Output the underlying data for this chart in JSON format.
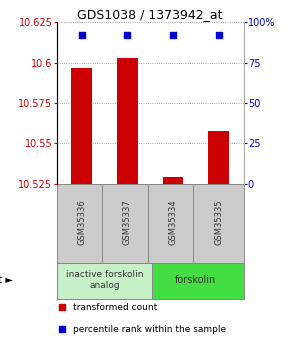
{
  "title": "GDS1038 / 1373942_at",
  "samples": [
    "GSM35336",
    "GSM35337",
    "GSM35334",
    "GSM35335"
  ],
  "bar_values": [
    10.597,
    10.603,
    10.529,
    10.558
  ],
  "percentile_values": [
    92,
    92,
    92,
    92
  ],
  "ylim_left": [
    10.525,
    10.625
  ],
  "ylim_right": [
    0,
    100
  ],
  "yticks_left": [
    10.525,
    10.55,
    10.575,
    10.6,
    10.625
  ],
  "yticks_right": [
    0,
    25,
    50,
    75,
    100
  ],
  "bar_color": "#cc0000",
  "percentile_color": "#0000cc",
  "agent_labels": [
    "inactive forskolin\nanalog",
    "forskolin"
  ],
  "agent_colors": [
    "#c8f0c8",
    "#44dd44"
  ],
  "grid_color": "#000000",
  "background_color": "#ffffff",
  "title_fontsize": 9,
  "tick_fontsize": 7,
  "legend_fontsize": 6.5,
  "sample_label_fontsize": 6,
  "agent_label_fontsize": 6.5
}
